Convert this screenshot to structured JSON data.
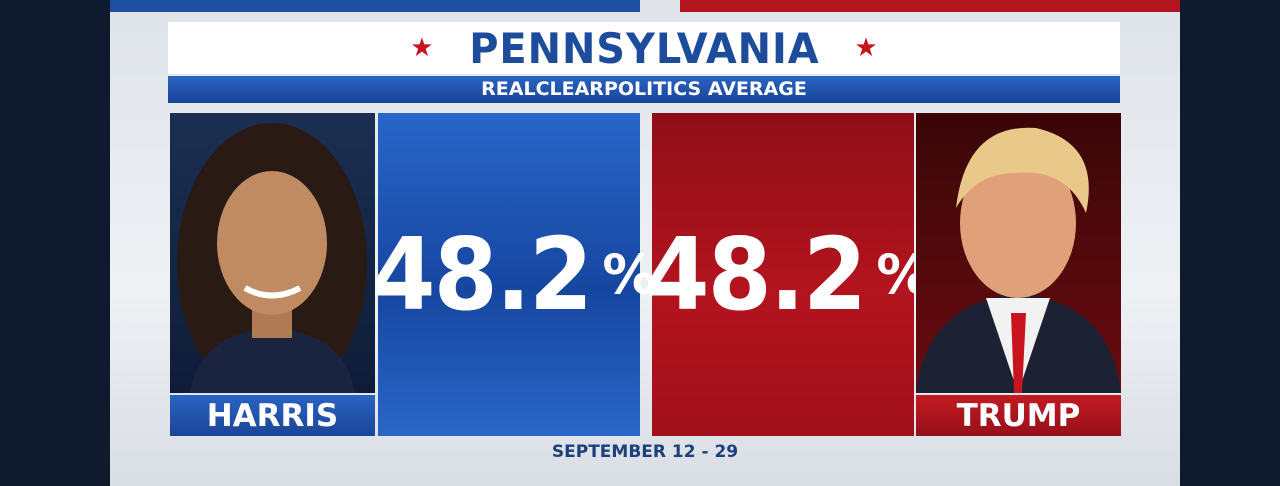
{
  "header": {
    "title": "PENNSYLVANIA",
    "subtitle": "REALCLEARPOLITICS AVERAGE"
  },
  "candidates": [
    {
      "name": "HARRIS",
      "value": 48.2,
      "unit": "%"
    },
    {
      "name": "TRUMP",
      "value": 48.2,
      "unit": "%"
    }
  ],
  "footer": {
    "date": "SEPTEMBER 12 - 29"
  }
}
